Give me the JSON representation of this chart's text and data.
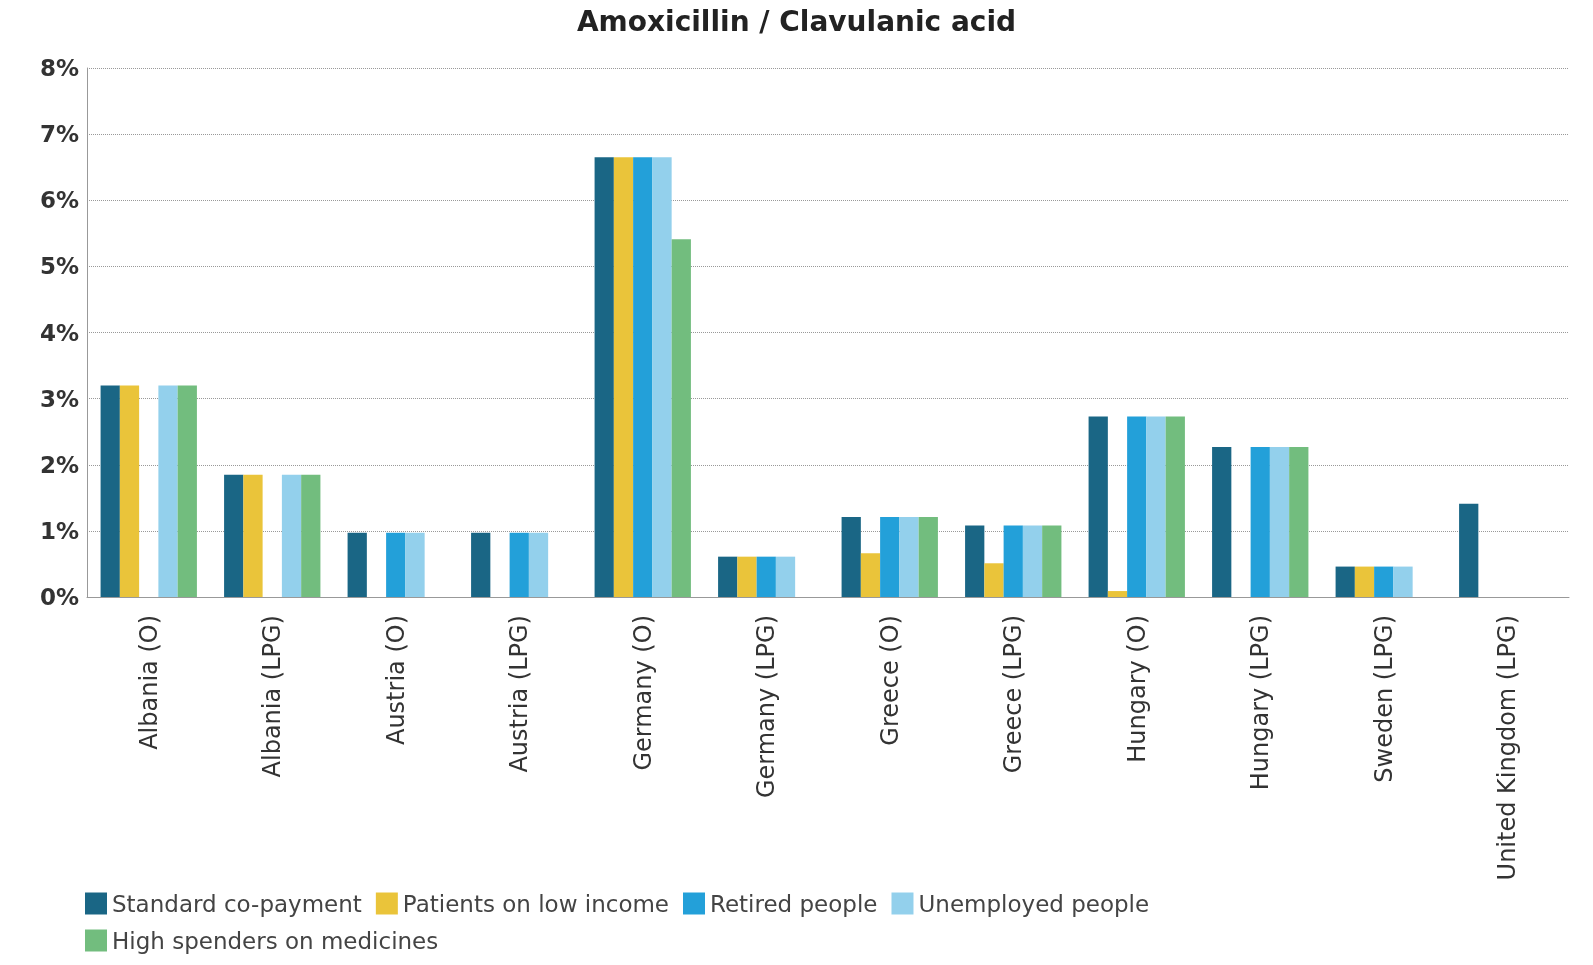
{
  "chart_data": {
    "type": "bar",
    "title": "Amoxicillin / Clavulanic acid",
    "categories": [
      "Albania (O)",
      "Albania (LPG)",
      "Austria (O)",
      "Austria (LPG)",
      "Germany (O)",
      "Germany (LPG)",
      "Greece (O)",
      "Greece (LPG)",
      "Hungary (O)",
      "Hungary (LPG)",
      "Sweden (LPG)",
      "United Kingdom (LPG)"
    ],
    "series": [
      {
        "name": "Standard co-payment",
        "color": "#1a6685",
        "values": [
          3.2,
          1.85,
          0.97,
          0.97,
          6.65,
          0.61,
          1.21,
          1.08,
          2.73,
          2.27,
          0.46,
          1.41
        ]
      },
      {
        "name": "Patients on low income",
        "color": "#eac43a",
        "values": [
          3.2,
          1.85,
          null,
          null,
          6.65,
          0.61,
          0.66,
          0.51,
          0.09,
          null,
          0.46,
          null
        ]
      },
      {
        "name": "Retired people",
        "color": "#23a0d9",
        "values": [
          null,
          null,
          0.97,
          0.97,
          6.65,
          0.61,
          1.21,
          1.08,
          2.73,
          2.27,
          0.46,
          null
        ]
      },
      {
        "name": "Unemployed people",
        "color": "#93d0ec",
        "values": [
          3.2,
          1.85,
          0.97,
          0.97,
          6.65,
          0.61,
          1.21,
          1.08,
          2.73,
          2.27,
          0.46,
          null
        ]
      },
      {
        "name": "High spenders on medicines",
        "color": "#72bd7e",
        "values": [
          3.2,
          1.85,
          null,
          null,
          5.41,
          null,
          1.21,
          1.08,
          2.73,
          2.27,
          null,
          null
        ]
      }
    ],
    "ylim": [
      0,
      8
    ],
    "yticks": [
      {
        "value": 0,
        "label": "0%"
      },
      {
        "value": 1,
        "label": "1%"
      },
      {
        "value": 2,
        "label": "2%"
      },
      {
        "value": 3,
        "label": "3%"
      },
      {
        "value": 4,
        "label": "4%"
      },
      {
        "value": 5,
        "label": "5%"
      },
      {
        "value": 6,
        "label": "6%"
      },
      {
        "value": 7,
        "label": "7%"
      },
      {
        "value": 8,
        "label": "8%"
      }
    ],
    "grid": "y",
    "legend": "bottom left"
  }
}
